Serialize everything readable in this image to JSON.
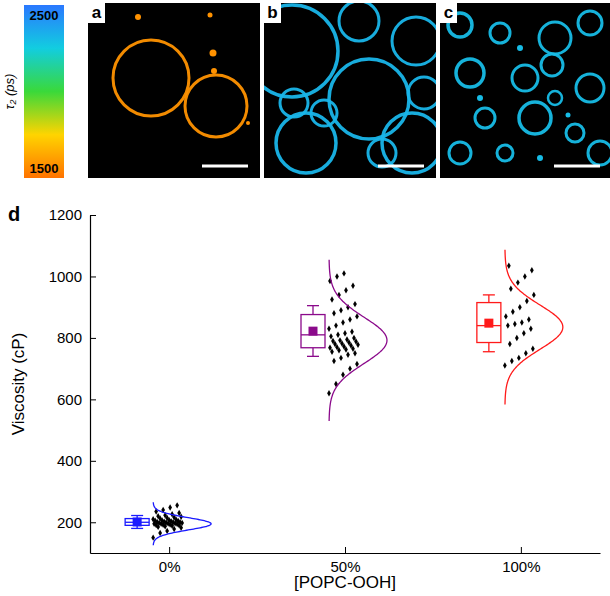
{
  "images": {
    "colorbar": {
      "label": "τ₂ (ps)",
      "range": [
        1500,
        2500
      ],
      "ticks": [
        1500,
        2500
      ]
    },
    "panels": [
      {
        "label": "a",
        "tau": 1580
      },
      {
        "label": "b",
        "tau": 2320
      },
      {
        "label": "c",
        "tau": 2300
      }
    ]
  },
  "chart_data": {
    "type": "box",
    "panel_label": "d",
    "x_label": "[POPC-OOH]",
    "y_label": "Viscosity (cP)",
    "categories": [
      "0%",
      "50%",
      "100%"
    ],
    "ylim": [
      100,
      1200
    ],
    "yticks": [
      200,
      400,
      600,
      800,
      1000,
      1200
    ],
    "series": [
      {
        "color": "#1a1aff",
        "low": 180,
        "q1": 190,
        "median": 200,
        "q3": 212,
        "high": 222,
        "mean": 201,
        "fit_mean": 195,
        "fit_sd": 20,
        "points": [
          150,
          165,
          172,
          178,
          182,
          185,
          187,
          189,
          190,
          191,
          192,
          193,
          194,
          195,
          195,
          196,
          197,
          198,
          198,
          199,
          200,
          200,
          201,
          202,
          203,
          204,
          205,
          206,
          207,
          208,
          210,
          212,
          214,
          216,
          218,
          220,
          223,
          226,
          230,
          235,
          240,
          248,
          255
        ]
      },
      {
        "color": "#8b0a8b",
        "low": 740,
        "q1": 768,
        "median": 810,
        "q3": 876,
        "high": 905,
        "mean": 822,
        "fit_mean": 792,
        "fit_sd": 75,
        "points": [
          620,
          650,
          680,
          700,
          715,
          725,
          735,
          745,
          750,
          755,
          760,
          762,
          765,
          768,
          770,
          772,
          775,
          778,
          780,
          782,
          785,
          788,
          790,
          792,
          795,
          800,
          805,
          810,
          815,
          820,
          830,
          840,
          850,
          860,
          870,
          880,
          890,
          900,
          910,
          925,
          940,
          955,
          970,
          985,
          1000,
          1010
        ]
      },
      {
        "color": "#ff1a1a",
        "low": 755,
        "q1": 785,
        "median": 840,
        "q3": 915,
        "high": 940,
        "mean": 848,
        "fit_mean": 835,
        "fit_sd": 72,
        "points": [
          710,
          725,
          735,
          750,
          765,
          780,
          800,
          815,
          830,
          840,
          845,
          850,
          860,
          870,
          885,
          900,
          920,
          940,
          960,
          980,
          1000,
          1020,
          1035
        ]
      }
    ]
  }
}
